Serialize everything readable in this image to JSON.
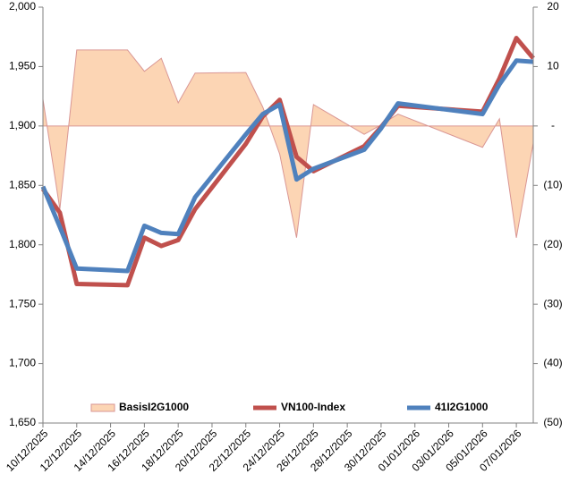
{
  "chart_data": {
    "type": "combo",
    "x": [
      "10/12/2025",
      "11/12/2025",
      "12/12/2025",
      "15/12/2025",
      "16/12/2025",
      "17/12/2025",
      "18/12/2025",
      "19/12/2025",
      "22/12/2025",
      "23/12/2025",
      "24/12/2025",
      "25/12/2025",
      "26/12/2025",
      "29/12/2025",
      "30/12/2025",
      "31/12/2025",
      "05/01/2026",
      "06/01/2026",
      "07/01/2026",
      "08/01/2026"
    ],
    "xlim": [
      "10/12/2025",
      "08/01/2026"
    ],
    "xticks": [
      "10/12/2025",
      "12/12/2025",
      "14/12/2025",
      "16/12/2025",
      "18/12/2025",
      "20/12/2025",
      "22/12/2025",
      "24/12/2025",
      "26/12/2025",
      "28/12/2025",
      "30/12/2025",
      "01/01/2026",
      "03/01/2026",
      "05/01/2026",
      "07/01/2026"
    ],
    "series": [
      {
        "name": "BasisI2G1000",
        "type": "area",
        "axis": "y2",
        "color": "#fcd5b4",
        "stroke": "#d99694",
        "values": [
          4.5,
          -14,
          12.8,
          12.8,
          9.2,
          11.4,
          3.9,
          8.9,
          9.0,
          3.2,
          -4.7,
          -18.8,
          3.6,
          -1.4,
          0.2,
          2,
          -3.6,
          1.2,
          -18.8,
          -2.9
        ]
      },
      {
        "name": "VN100-Index",
        "type": "line",
        "axis": "y",
        "color": "#c0504d",
        "values": [
          1847,
          1827,
          1767,
          1766,
          1806,
          1799,
          1804,
          1830,
          1885,
          1908,
          1922,
          1874,
          1862,
          1883,
          1899,
          1917,
          1912,
          1940,
          1974,
          1957
        ]
      },
      {
        "name": "41I2G1000",
        "type": "line",
        "axis": "y",
        "color": "#4f81bd",
        "values": [
          1849,
          1815,
          1780,
          1778,
          1816,
          1810,
          1809,
          1840,
          1893,
          1910,
          1918,
          1855,
          1864,
          1880,
          1898,
          1919,
          1910,
          1935,
          1955,
          1954
        ]
      }
    ],
    "ylim": [
      1650,
      2000
    ],
    "yticks": [
      {
        "value": 1650,
        "label": "1,650"
      },
      {
        "value": 1700,
        "label": "1,700"
      },
      {
        "value": 1750,
        "label": "1,750"
      },
      {
        "value": 1800,
        "label": "1,800"
      },
      {
        "value": 1850,
        "label": "1,850"
      },
      {
        "value": 1900,
        "label": "1,900"
      },
      {
        "value": 1950,
        "label": "1,950"
      },
      {
        "value": 2000,
        "label": "2,000"
      }
    ],
    "y2lim": [
      -50,
      20
    ],
    "y2ticks": [
      {
        "value": -50,
        "label": "(50)"
      },
      {
        "value": -40,
        "label": "(40)"
      },
      {
        "value": -30,
        "label": "(30)"
      },
      {
        "value": -20,
        "label": "(20)"
      },
      {
        "value": -10,
        "label": "(10)"
      },
      {
        "value": 0,
        "label": "-"
      },
      10,
      20
    ],
    "legend": "bottom",
    "grid": false
  }
}
